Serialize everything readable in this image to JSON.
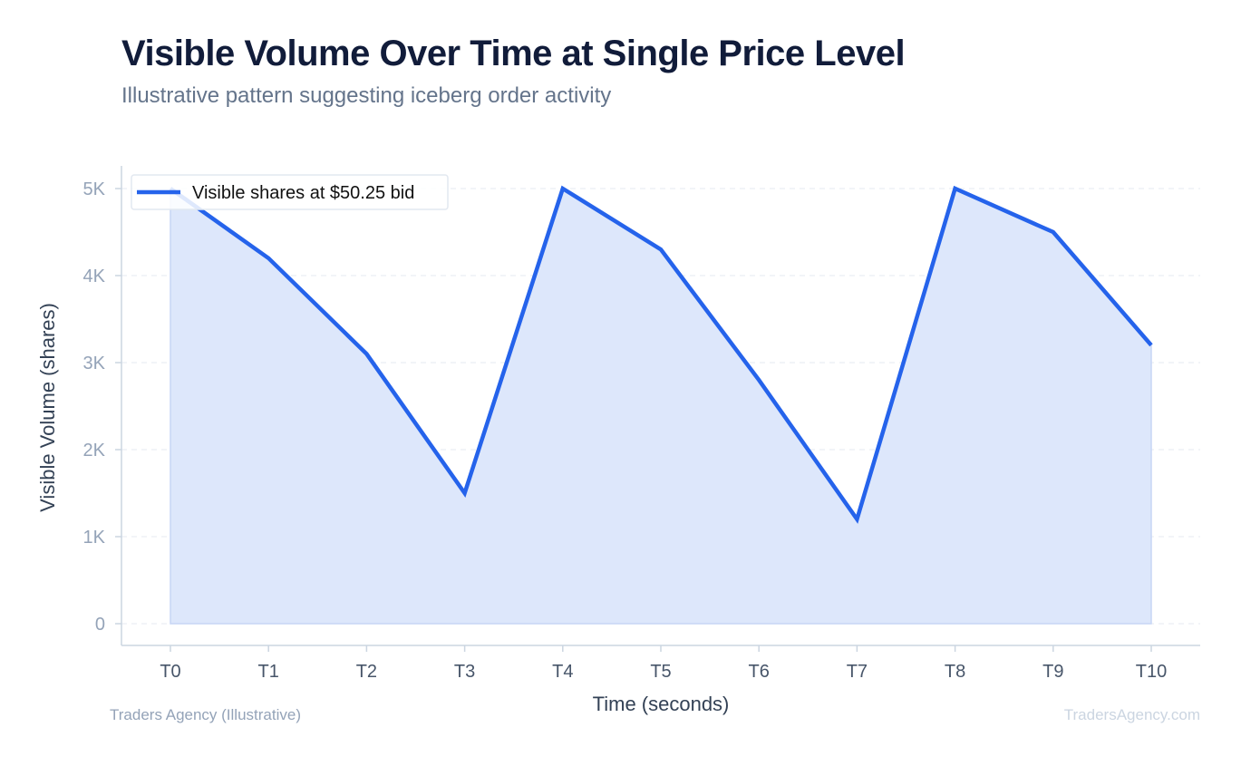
{
  "header": {
    "title": "Visible Volume Over Time at Single Price Level",
    "subtitle": "Illustrative pattern suggesting iceberg order activity"
  },
  "footer": {
    "source": "Traders Agency (Illustrative)",
    "watermark": "TradersAgency.com"
  },
  "colors": {
    "line": "#2563eb",
    "fill": "#dde7fb",
    "grid": "#e5e9f0",
    "axis": "#cbd5e1",
    "y_tick": "#94a3b8",
    "x_tick": "#475569"
  },
  "chart_data": {
    "type": "area",
    "title": "Visible Volume Over Time at Single Price Level",
    "subtitle": "Illustrative pattern suggesting iceberg order activity",
    "xlabel": "Time (seconds)",
    "ylabel": "Visible Volume (shares)",
    "categories": [
      "T0",
      "T1",
      "T2",
      "T3",
      "T4",
      "T5",
      "T6",
      "T7",
      "T8",
      "T9",
      "T10"
    ],
    "series": [
      {
        "name": "Visible shares at $50.25 bid",
        "values": [
          5000,
          4200,
          3100,
          1500,
          5000,
          4300,
          2800,
          1200,
          5000,
          4500,
          3200
        ]
      }
    ],
    "ylim": [
      0,
      5000
    ],
    "yticks": [
      0,
      1000,
      2000,
      3000,
      4000,
      5000
    ],
    "ytick_labels": [
      "0",
      "1K",
      "2K",
      "3K",
      "4K",
      "5K"
    ],
    "grid": true,
    "legend_position": "top-left"
  }
}
